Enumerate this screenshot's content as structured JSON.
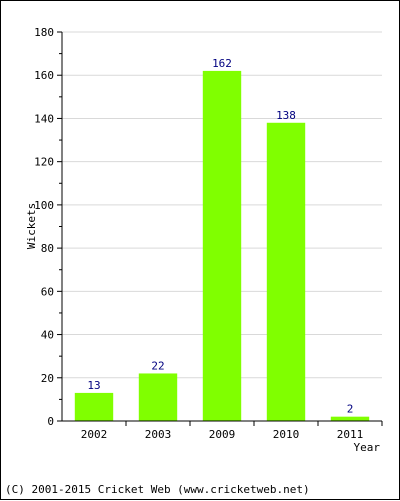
{
  "chart_data": {
    "type": "bar",
    "categories": [
      "2002",
      "2003",
      "2009",
      "2010",
      "2011"
    ],
    "values": [
      13,
      22,
      162,
      138,
      2
    ],
    "data_labels": [
      "13",
      "22",
      "162",
      "138",
      "2"
    ],
    "xlabel": "Year",
    "ylabel": "Wickets",
    "ylim": [
      0,
      180
    ],
    "yticks": [
      0,
      20,
      40,
      60,
      80,
      100,
      120,
      140,
      160,
      180
    ],
    "ytick_labels": [
      "0",
      "20",
      "40",
      "60",
      "80",
      "100",
      "120",
      "140",
      "160",
      "180"
    ],
    "grid": true,
    "legend": "none",
    "colors": {
      "bar": "#80ff00",
      "data_label": "#000080",
      "grid": "#d9d9d9",
      "axis": "#000000"
    }
  },
  "footer": {
    "copyright": "(C) 2001-2015 Cricket Web (www.cricketweb.net)"
  }
}
